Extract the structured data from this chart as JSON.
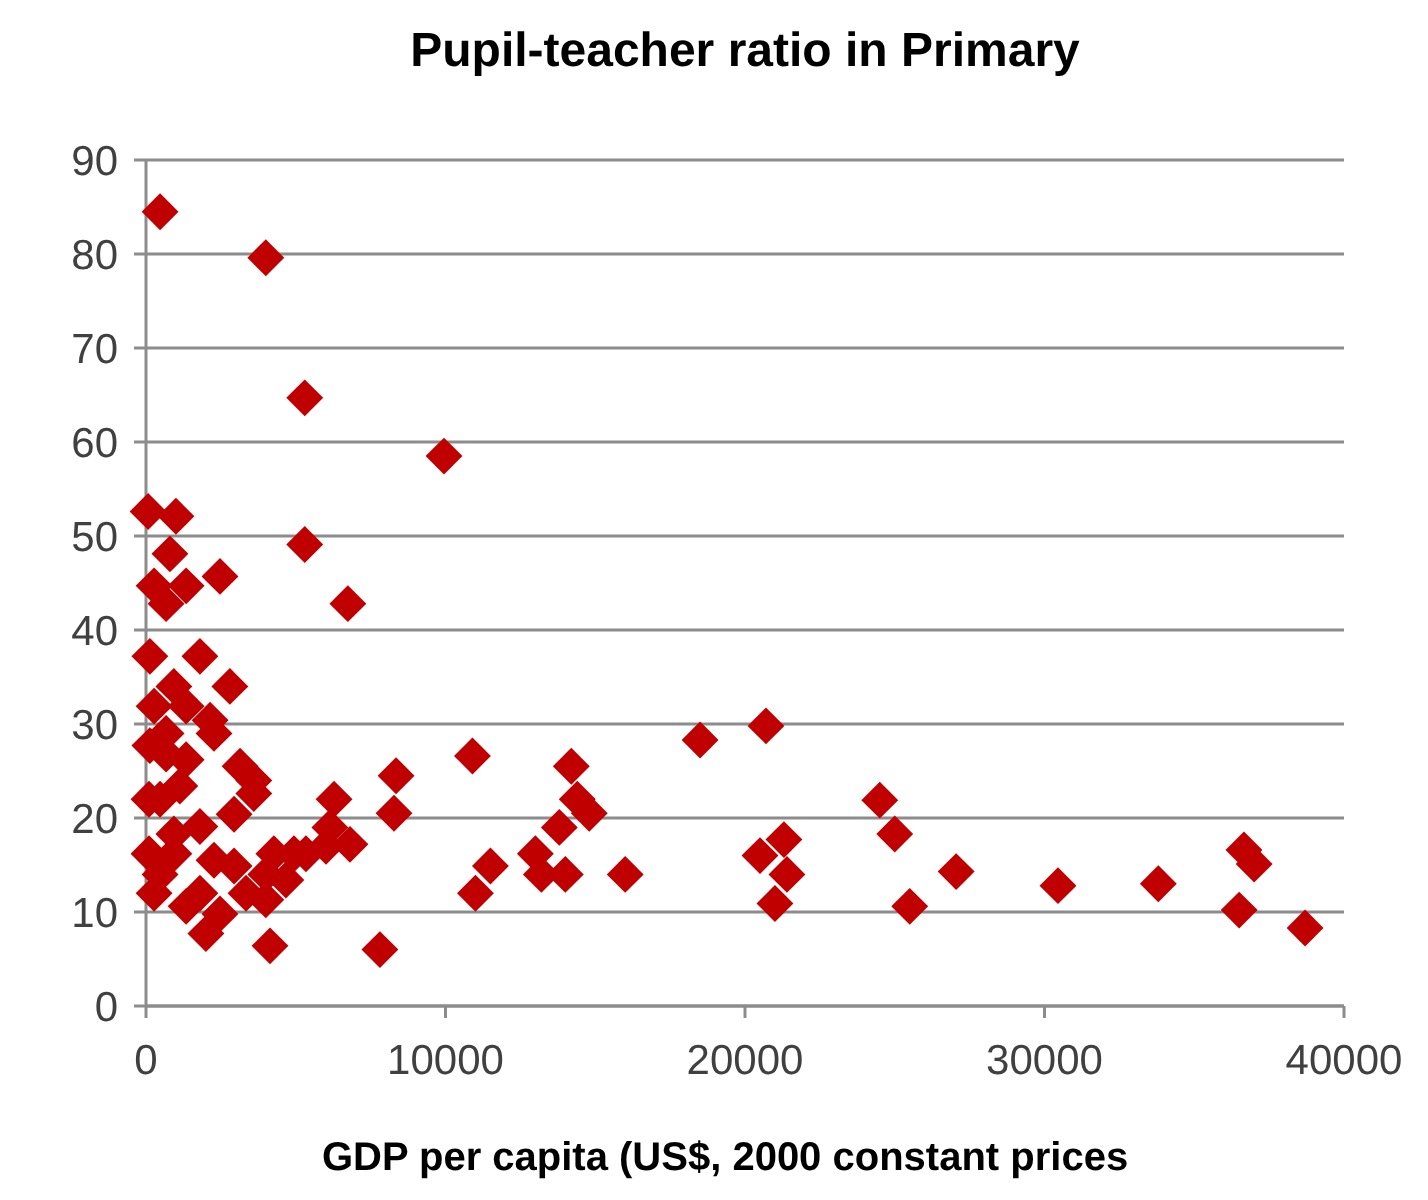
{
  "chart_data": {
    "type": "scatter",
    "title": "Pupil-teacher ratio in Primary",
    "xlabel": "GDP per capita (US$, 2000 constant prices",
    "xlim": [
      0,
      40000
    ],
    "xticks": [
      0,
      10000,
      20000,
      30000,
      40000
    ],
    "ylim": [
      0,
      90
    ],
    "yticks": [
      0,
      10,
      20,
      30,
      40,
      50,
      60,
      70,
      80,
      90
    ],
    "grid": "y",
    "marker": "diamond",
    "series": [
      {
        "color": "#c00000",
        "x": [
          38700,
          36660,
          37000,
          36500,
          33800,
          30450,
          27050,
          25500,
          25000,
          24500,
          21000,
          21400,
          21300,
          20500,
          20700,
          18500,
          16000,
          14200,
          14400,
          14800,
          13800,
          13000,
          14000,
          13200,
          11500,
          11000,
          10900,
          9950,
          470,
          4000,
          5300,
          70,
          1000,
          800,
          5300,
          270,
          1340,
          2470,
          670,
          6740,
          130,
          1800,
          2800,
          930,
          130,
          670,
          1340,
          2270,
          3140,
          3600,
          470,
          100,
          1130,
          8350,
          8280,
          6280,
          6140,
          6810,
          5340,
          4270,
          4670,
          4000,
          2000,
          4140,
          7810,
          470,
          100,
          930,
          270,
          1800,
          2940,
          3340,
          2470,
          1340,
          4940,
          1800,
          2940,
          3600,
          670,
          270,
          1340,
          2140,
          930,
          2270,
          4000,
          6010
        ],
        "values": [
          8.3,
          16.6,
          15.1,
          10.2,
          13,
          12.8,
          14.3,
          10.6,
          18.3,
          21.9,
          10.9,
          14,
          17.7,
          16,
          29.8,
          28.3,
          14,
          25.5,
          22,
          20.5,
          19,
          16.2,
          14,
          14,
          14.9,
          12,
          26.6,
          58.5,
          84.5,
          79.6,
          64.7,
          52.6,
          52.1,
          48.1,
          49.1,
          44.7,
          44.7,
          45.7,
          42.8,
          42.8,
          37.2,
          37.2,
          34,
          34,
          27.7,
          29,
          26.2,
          29,
          25.5,
          24,
          22,
          22,
          23.4,
          24.5,
          20.5,
          22,
          19,
          17.2,
          16.2,
          16.2,
          13.4,
          11.3,
          7.7,
          6.4,
          6,
          14,
          16.2,
          18.3,
          12,
          12,
          14.9,
          12,
          9.8,
          10.6,
          16.2,
          19.1,
          20.4,
          22.6,
          26.8,
          31.9,
          31.9,
          30.4,
          16.2,
          15.5,
          14,
          17
        ]
      }
    ]
  }
}
